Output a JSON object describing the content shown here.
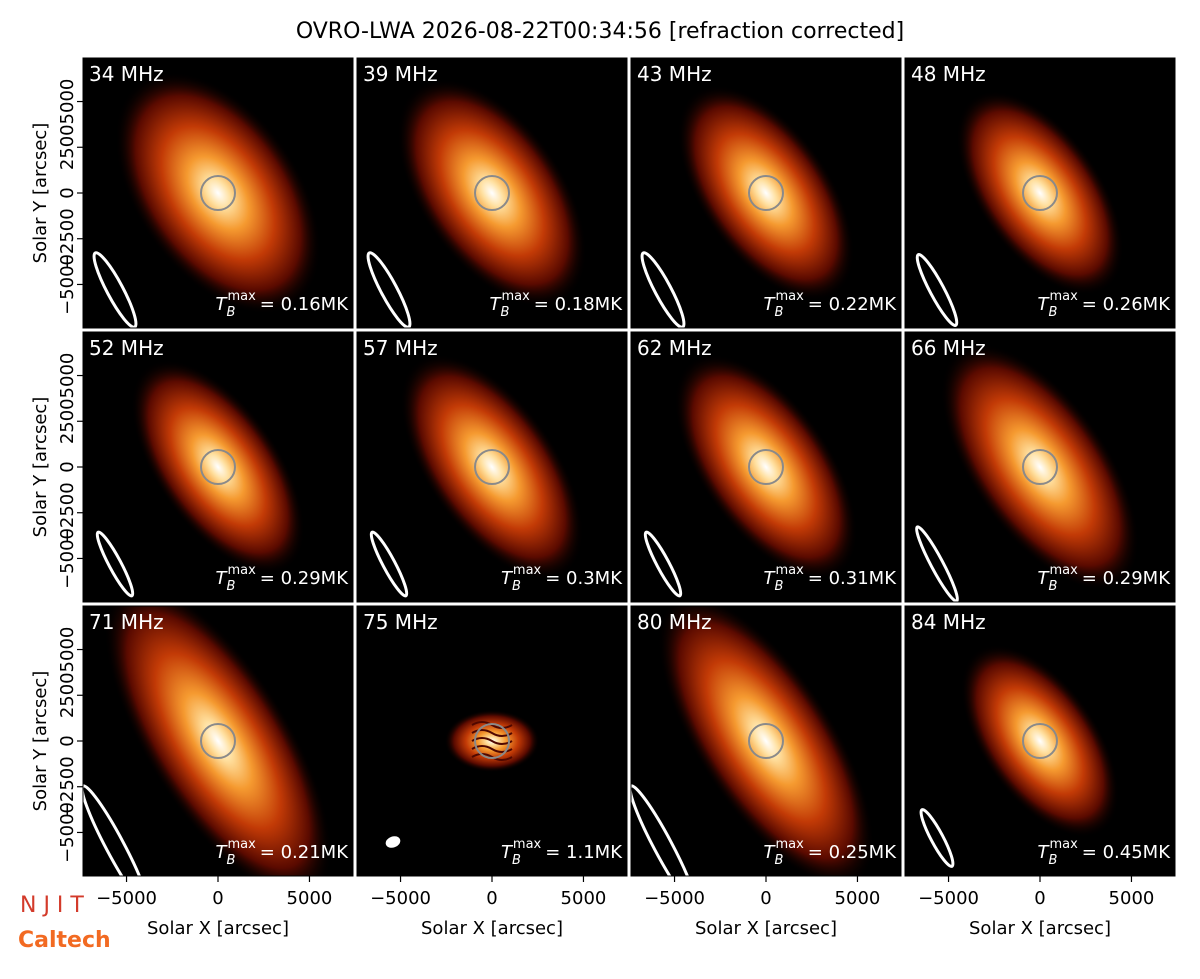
{
  "chart_data": {
    "type": "image-grid",
    "title": "OVRO-LWA 2026-08-22T00:34:56 [refraction corrected]",
    "xlabel": "Solar X [arcsec]",
    "ylabel": "Solar Y [arcsec]",
    "xlim": [
      -7380,
      7380
    ],
    "ylim": [
      -7380,
      7380
    ],
    "xticks": [
      {
        "value": -5000,
        "label": "−5000"
      },
      0,
      5000
    ],
    "yticks": [
      {
        "value": -5000,
        "label": "−5000"
      },
      {
        "value": -2500,
        "label": "−2500"
      },
      0,
      2500,
      5000
    ],
    "tmax_symbol": "T",
    "tmax_sub": "B",
    "tmax_sup": "max",
    "panels": [
      {
        "label": "34 MHz",
        "tmax": "= 0.16MK"
      },
      {
        "label": "39 MHz",
        "tmax": "= 0.18MK"
      },
      {
        "label": "43 MHz",
        "tmax": "= 0.22MK"
      },
      {
        "label": "48 MHz",
        "tmax": "= 0.26MK"
      },
      {
        "label": "52 MHz",
        "tmax": "= 0.29MK"
      },
      {
        "label": "57 MHz",
        "tmax": "= 0.3MK"
      },
      {
        "label": "62 MHz",
        "tmax": "= 0.31MK"
      },
      {
        "label": "66 MHz",
        "tmax": "= 0.29MK"
      },
      {
        "label": "71 MHz",
        "tmax": "= 0.21MK"
      },
      {
        "label": "75 MHz",
        "tmax": "= 1.1MK"
      },
      {
        "label": "80 MHz",
        "tmax": "= 0.25MK"
      },
      {
        "label": "84 MHz",
        "tmax": "= 0.45MK"
      }
    ],
    "logos": [
      "N J I T",
      "Caltech"
    ]
  }
}
